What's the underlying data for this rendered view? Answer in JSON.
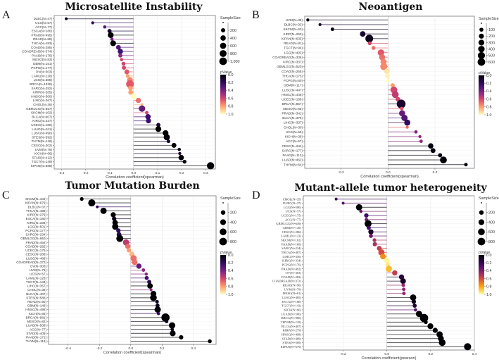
{
  "chart_data": [
    {
      "panel_label": "A",
      "type": "lollipop",
      "title": "Microsatellite Instability",
      "xlabel": "Correlation coefficient(spearman)",
      "xlim": [
        -0.33,
        0.34
      ],
      "xticks": [
        -0.3,
        -0.2,
        -0.1,
        0.0,
        0.1,
        0.2,
        0.3
      ],
      "colormap": "magma",
      "size_legend_title": "SampleSize",
      "size_legend_values": [
        "200",
        "400",
        "600",
        "800",
        "1,000"
      ],
      "color_legend_title": "pValue",
      "color_legend_values": [
        "0.0",
        "0.2",
        "0.4",
        "0.6",
        "0.8",
        "1.0"
      ],
      "categories": [
        "DLBC(N=47)",
        "UCS(N=57)",
        "ACC(N=77)",
        "ESCA(N=180)",
        "PRAD(N=495)",
        "READ(N=89)",
        "THCA(N=493)",
        "COAD(N=285)",
        "COADREAD(N=374)",
        "PAAD(N=176)",
        "MESO(N=83)",
        "GBM(N=151)",
        "PCPG(N=177)",
        "OV(N=303)",
        "LAML(N=128)",
        "LGG(N=508)",
        "BRCA(N=1039)",
        "SARC(N=252)",
        "KIRP(N=285)",
        "HNSC(N=500)",
        "LIHC(N=367)",
        "CHOL(N=36)",
        "GBMLGG(N=657)",
        "SKCM(N=102)",
        "BLCA(N=407)",
        "KIRC(N=337)",
        "UCEC(N=180)",
        "LUAD(N=511)",
        "LUSC(N=490)",
        "STES(N=592)",
        "THYM(N=118)",
        "CESC(N=302)",
        "UVM(N=79)",
        "KICH(N=66)",
        "STAD(N=412)",
        "TGCT(N=148)",
        "KIPAN(N=888)"
      ],
      "values": [
        -0.28,
        -0.17,
        -0.12,
        -0.1,
        -0.095,
        -0.09,
        -0.085,
        -0.063,
        -0.055,
        -0.055,
        -0.05,
        -0.042,
        -0.04,
        -0.028,
        -0.025,
        -0.015,
        -0.015,
        -0.013,
        -0.012,
        0.0,
        0.02,
        0.035,
        0.035,
        0.055,
        0.06,
        0.062,
        0.103,
        0.103,
        0.133,
        0.138,
        0.145,
        0.168,
        0.19,
        0.192,
        0.198,
        0.212,
        0.32
      ],
      "pvalues": [
        0.05,
        0.2,
        0.3,
        0.1,
        0.0,
        0.4,
        0.0,
        0.3,
        0.25,
        0.45,
        0.6,
        0.6,
        0.6,
        0.65,
        0.8,
        0.75,
        0.65,
        0.8,
        0.8,
        1.0,
        0.7,
        0.85,
        0.35,
        0.6,
        0.25,
        0.25,
        0.1,
        0.0,
        0.0,
        0.0,
        0.1,
        0.0,
        0.05,
        0.1,
        0.0,
        0.02,
        0.0
      ]
    },
    {
      "panel_label": "B",
      "type": "lollipop",
      "title": "Neoantigen",
      "xlabel": "Correlation coefficient(spearman)",
      "xlim": [
        -0.355,
        0.368
      ],
      "xticks": [
        -0.2,
        0.0,
        0.2
      ],
      "colormap": "magma",
      "size_legend_title": "SampleSize",
      "size_legend_values": [
        "100",
        "200",
        "300",
        "400",
        "500",
        "600"
      ],
      "color_legend_title": "pValue",
      "color_legend_values": [
        "0.0",
        "0.2",
        "0.4",
        "0.6",
        "0.8",
        "1.0"
      ],
      "categories": [
        "UVM(N=38)",
        "DLBC(N=33)",
        "SKCM(N=63)",
        "KIRP(N=260)",
        "KIPAN(N=635)",
        "READ(N=81)",
        "TGCT(N=94)",
        "LGG(N=403)",
        "COADREAD(N=336)",
        "KIRC(N=337)",
        "GBMLGG(N=520)",
        "COAD(N=255)",
        "THCA(N=175)",
        "PCPG(N=60)",
        "GBM(N=117)",
        "LUSC(N=447)",
        "HNSC(N=446)",
        "UCEC(N=166)",
        "BRCA(N=857)",
        "MESO(N=65)",
        "PRAD(N=341)",
        "BLCA(N=375)",
        "LIHC(N=337)",
        "CHOL(N=30)",
        "UCS(N=50)",
        "KICH(N=39)",
        "ACC(N=57)",
        "CESC(N=244)",
        "SARC(N=177)",
        "PAAD(N=113)",
        "LUAD(N=462)",
        "THYM(N=64)"
      ],
      "values": [
        -0.342,
        -0.29,
        -0.237,
        -0.108,
        -0.08,
        -0.078,
        -0.062,
        -0.03,
        -0.025,
        -0.019,
        -0.018,
        -0.005,
        -0.002,
        -0.001,
        0.02,
        0.025,
        0.031,
        0.042,
        0.056,
        0.058,
        0.06,
        0.07,
        0.082,
        0.082,
        0.119,
        0.136,
        0.141,
        0.182,
        0.192,
        0.222,
        0.236,
        0.332
      ],
      "pvalues": [
        0.05,
        0.1,
        0.05,
        0.1,
        0.05,
        0.6,
        0.7,
        0.65,
        0.7,
        0.75,
        0.75,
        0.95,
        0.98,
        1.0,
        0.8,
        0.6,
        0.55,
        0.6,
        0.1,
        0.65,
        0.35,
        0.3,
        0.2,
        0.7,
        0.4,
        0.45,
        0.45,
        0.02,
        0.02,
        0.03,
        0.0,
        0.02
      ]
    },
    {
      "panel_label": "C",
      "type": "lollipop",
      "title": "Tumor Mutation Burden",
      "xlabel": "Correlation coefficient(spearman)",
      "xlim": [
        -0.525,
        0.545
      ],
      "xticks": [
        -0.4,
        -0.2,
        0.0,
        0.2,
        0.4
      ],
      "colormap": "magma",
      "size_legend_title": "SampleSize",
      "size_legend_values": [
        "200",
        "400",
        "600",
        "800"
      ],
      "color_legend_title": "pValue",
      "color_legend_values": [
        "0.0",
        "0.2",
        "0.4",
        "0.6",
        "0.8",
        "1.0"
      ],
      "categories": [
        "SKCM(N=102)",
        "KIPAN(N=679)",
        "DLBC(N=37)",
        "THCA(N=489)",
        "KIRP(N=279)",
        "ESCA(N=180)",
        "KIRC(N=334)",
        "LGG(N=501)",
        "PCPG(N=177)",
        "SARC(N=234)",
        "GBMLGG(N=650)",
        "PRAD(N=492)",
        "COAD(N=282)",
        "UCEC(N=176)",
        "CESC(N=288)",
        "LUSC(N=486)",
        "COADREAD(N=372)",
        "OV(N=303)",
        "UVM(N=79)",
        "UCS(N=57)",
        "LAML(N=128)",
        "TGCT(N=143)",
        "LIHC(N=357)",
        "CHOL(N=36)",
        "BLCA(N=407)",
        "STES(N=588)",
        "READ(N=90)",
        "GBM(N=149)",
        "HNSC(N=498)",
        "KICH(N=66)",
        "BRCA(N=981)",
        "MESO(N=82)",
        "LUAD(N=509)",
        "ACC(N=77)",
        "STAD(N=409)",
        "PAAD(N=171)",
        "THYM(N=118)"
      ],
      "values": [
        -0.313,
        -0.249,
        -0.214,
        -0.174,
        -0.112,
        -0.106,
        -0.1,
        -0.099,
        -0.079,
        -0.075,
        -0.07,
        -0.03,
        -0.019,
        -0.012,
        0.007,
        0.018,
        0.025,
        0.052,
        0.081,
        0.099,
        0.102,
        0.118,
        0.123,
        0.13,
        0.145,
        0.145,
        0.168,
        0.171,
        0.172,
        0.177,
        0.222,
        0.229,
        0.264,
        0.265,
        0.268,
        0.322,
        0.505
      ],
      "pvalues": [
        0.0,
        0.0,
        0.2,
        0.0,
        0.0,
        0.05,
        0.0,
        0.0,
        0.2,
        0.15,
        0.0,
        0.55,
        0.7,
        0.8,
        0.85,
        0.7,
        0.7,
        0.35,
        0.45,
        0.45,
        0.25,
        0.15,
        0.0,
        0.45,
        0.0,
        0.0,
        0.05,
        0.05,
        0.0,
        0.2,
        0.0,
        0.05,
        0.0,
        0.05,
        0.0,
        0.0,
        0.0
      ]
    },
    {
      "panel_label": "D",
      "type": "lollipop",
      "title": "Mutant-allele tumor heterogeneity",
      "xlabel": "Correlation coefficient(pearson)",
      "xlim": [
        -0.382,
        0.4
      ],
      "xticks": [
        -0.2,
        0.0,
        0.2,
        0.4
      ],
      "colormap": "inferno",
      "size_legend_title": "SampleSize",
      "size_legend_values": [
        "200",
        "400",
        "600",
        "800"
      ],
      "color_legend_title": "pValue",
      "color_legend_values": [
        "0.0",
        "0.2",
        "0.4",
        "0.6",
        "0.8",
        "1.0"
      ],
      "categories": [
        "CHOL(N=35)",
        "DLBC(N=37)",
        "LGG(N=500)",
        "UCS(N=57)",
        "UCEC(N=175)",
        "ACC(N=77)",
        "GBMLGG(N=649)",
        "GBM(N=149)",
        "CESC(N=286)",
        "LAML(N=123)",
        "SKCM(N=102)",
        "PAAD(N=168)",
        "SARC(N=234)",
        "THCA(N=487)",
        "LIHC(N=356)",
        "KIRC(N=334)",
        "PCPG(N=176)",
        "PRAD(N=492)",
        "OV(N=303)",
        "COAD(N=282)",
        "COADREAD(N=372)",
        "READ(N=90)",
        "UVM(N=79)",
        "MESO(N=81)",
        "LUSC(N=485)",
        "ESCA(N=180)",
        "TGCT(N=143)",
        "KICH(N=66)",
        "LUAD(N=506)",
        "BRCA(N=980)",
        "THYM(N=118)",
        "BLCA(N=407)",
        "KIRP(N=279)",
        "HNSC(N=498)",
        "STAD(N=409)",
        "STES(N=589)",
        "KIPAN(N=679)"
      ],
      "values": [
        -0.232,
        -0.2,
        -0.127,
        -0.119,
        -0.094,
        -0.094,
        -0.086,
        -0.083,
        -0.073,
        -0.073,
        -0.057,
        -0.055,
        -0.035,
        -0.025,
        -0.018,
        0.0,
        0.004,
        0.009,
        0.036,
        0.067,
        0.074,
        0.075,
        0.077,
        0.078,
        0.12,
        0.123,
        0.127,
        0.131,
        0.147,
        0.17,
        0.178,
        0.199,
        0.221,
        0.241,
        0.247,
        0.253,
        0.369
      ],
      "pvalues": [
        0.2,
        0.3,
        0.0,
        0.35,
        0.25,
        0.35,
        0.0,
        0.25,
        0.1,
        0.35,
        0.5,
        0.5,
        0.55,
        0.6,
        0.75,
        0.98,
        0.95,
        0.85,
        0.55,
        0.15,
        0.1,
        0.45,
        0.45,
        0.45,
        0.0,
        0.05,
        0.1,
        0.3,
        0.0,
        0.0,
        0.0,
        0.0,
        0.0,
        0.0,
        0.0,
        0.0,
        0.0
      ]
    }
  ]
}
